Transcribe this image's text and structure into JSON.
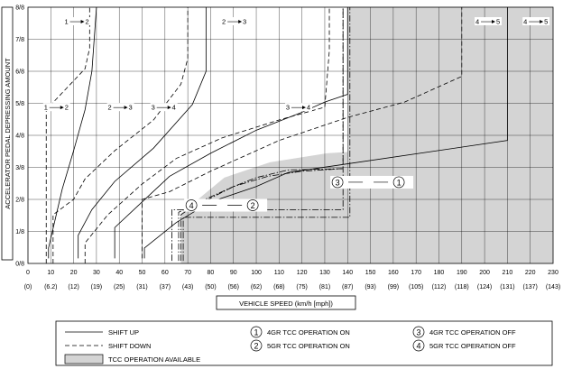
{
  "chart_data": {
    "type": "line",
    "title": "",
    "xlabel": "VEHICLE SPEED (km/h [mph])",
    "ylabel": "ACCELERATOR PEDAL DEPRESSING AMOUNT",
    "xlim": [
      0,
      230
    ],
    "ylim": [
      0,
      1
    ],
    "x_ticks": [
      {
        "v": 0,
        "kmh": "0",
        "mph": "(0)"
      },
      {
        "v": 10,
        "kmh": "10",
        "mph": "(6.2)"
      },
      {
        "v": 20,
        "kmh": "20",
        "mph": "(12)"
      },
      {
        "v": 30,
        "kmh": "30",
        "mph": "(19)"
      },
      {
        "v": 40,
        "kmh": "40",
        "mph": "(25)"
      },
      {
        "v": 50,
        "kmh": "50",
        "mph": "(31)"
      },
      {
        "v": 60,
        "kmh": "60",
        "mph": "(37)"
      },
      {
        "v": 70,
        "kmh": "70",
        "mph": "(43)"
      },
      {
        "v": 80,
        "kmh": "80",
        "mph": "(50)"
      },
      {
        "v": 90,
        "kmh": "90",
        "mph": "(56)"
      },
      {
        "v": 100,
        "kmh": "100",
        "mph": "(62)"
      },
      {
        "v": 110,
        "kmh": "110",
        "mph": "(68)"
      },
      {
        "v": 120,
        "kmh": "120",
        "mph": "(75)"
      },
      {
        "v": 130,
        "kmh": "130",
        "mph": "(81)"
      },
      {
        "v": 140,
        "kmh": "140",
        "mph": "(87)"
      },
      {
        "v": 150,
        "kmh": "150",
        "mph": "(93)"
      },
      {
        "v": 160,
        "kmh": "160",
        "mph": "(99)"
      },
      {
        "v": 170,
        "kmh": "170",
        "mph": "(105)"
      },
      {
        "v": 180,
        "kmh": "180",
        "mph": "(112)"
      },
      {
        "v": 190,
        "kmh": "190",
        "mph": "(118)"
      },
      {
        "v": 200,
        "kmh": "200",
        "mph": "(124)"
      },
      {
        "v": 210,
        "kmh": "210",
        "mph": "(131)"
      },
      {
        "v": 220,
        "kmh": "220",
        "mph": "(137)"
      },
      {
        "v": 230,
        "kmh": "230",
        "mph": "(143)"
      }
    ],
    "y_ticks": [
      {
        "v": 0,
        "label": "0/8"
      },
      {
        "v": 0.125,
        "label": "1/8"
      },
      {
        "v": 0.25,
        "label": "2/8"
      },
      {
        "v": 0.375,
        "label": "3/8"
      },
      {
        "v": 0.5,
        "label": "4/8"
      },
      {
        "v": 0.625,
        "label": "5/8"
      },
      {
        "v": 0.75,
        "label": "6/8"
      },
      {
        "v": 0.875,
        "label": "7/8"
      },
      {
        "v": 1.0,
        "label": "8/8"
      }
    ],
    "grid": true,
    "shaded_region": {
      "name": "TCC OPERATION AVAILABLE",
      "color": "#d4d4d4",
      "points": [
        [
          67,
          0
        ],
        [
          67,
          0.195
        ],
        [
          86,
          0.335
        ],
        [
          106,
          0.395
        ],
        [
          131,
          0.43
        ],
        [
          140,
          0.435
        ],
        [
          140,
          1.0
        ],
        [
          230,
          1.0
        ],
        [
          230,
          0
        ]
      ]
    },
    "series": [
      {
        "name": "1→2 up",
        "style": "solid",
        "points": [
          [
            9,
            0.02
          ],
          [
            9,
            0.06
          ],
          [
            15,
            0.29
          ],
          [
            20,
            0.44
          ],
          [
            25,
            0.6
          ],
          [
            28,
            0.75
          ],
          [
            30,
            1.0
          ]
        ]
      },
      {
        "name": "2→3 up",
        "style": "solid",
        "points": [
          [
            22,
            0.02
          ],
          [
            22,
            0.11
          ],
          [
            28,
            0.21
          ],
          [
            38,
            0.32
          ],
          [
            55,
            0.45
          ],
          [
            72,
            0.62
          ],
          [
            78,
            0.75
          ],
          [
            78,
            1.0
          ]
        ]
      },
      {
        "name": "3→4 up",
        "style": "solid",
        "points": [
          [
            38,
            0.02
          ],
          [
            38,
            0.14
          ],
          [
            50,
            0.24
          ],
          [
            62,
            0.34
          ],
          [
            80,
            0.43
          ],
          [
            100,
            0.52
          ],
          [
            120,
            0.59
          ],
          [
            130,
            0.63
          ],
          [
            140,
            0.66
          ],
          [
            140,
            1.0
          ]
        ]
      },
      {
        "name": "4→5 up",
        "style": "solid",
        "points": [
          [
            51,
            0.02
          ],
          [
            51,
            0.06
          ],
          [
            65,
            0.16
          ],
          [
            80,
            0.24
          ],
          [
            100,
            0.3
          ],
          [
            114,
            0.355
          ],
          [
            210,
            0.48
          ],
          [
            210,
            1.0
          ]
        ]
      },
      {
        "name": "1→2 down",
        "style": "dashed",
        "points": [
          [
            8,
            0
          ],
          [
            8,
            0.6
          ],
          [
            25,
            0.76
          ],
          [
            27,
            0.84
          ],
          [
            27,
            1.0
          ]
        ]
      },
      {
        "name": "2→3 down",
        "style": "dashed",
        "points": [
          [
            11,
            0
          ],
          [
            11,
            0.19
          ],
          [
            20,
            0.25
          ],
          [
            25,
            0.33
          ],
          [
            38,
            0.44
          ],
          [
            55,
            0.56
          ],
          [
            67,
            0.7
          ],
          [
            70,
            0.8
          ],
          [
            70,
            1.0
          ]
        ]
      },
      {
        "name": "3→4 down",
        "style": "dashed",
        "points": [
          [
            25,
            0
          ],
          [
            25,
            0.08
          ],
          [
            35,
            0.19
          ],
          [
            50,
            0.31
          ],
          [
            65,
            0.41
          ],
          [
            85,
            0.49
          ],
          [
            110,
            0.56
          ],
          [
            130,
            0.61
          ],
          [
            132,
            0.83
          ],
          [
            132,
            1.0
          ]
        ]
      },
      {
        "name": "4→5 down",
        "style": "dashed",
        "points": [
          [
            50,
            0.02
          ],
          [
            50,
            0.25
          ],
          [
            62,
            0.28
          ],
          [
            80,
            0.36
          ],
          [
            110,
            0.48
          ],
          [
            140,
            0.57
          ],
          [
            165,
            0.63
          ],
          [
            190,
            0.73
          ],
          [
            190,
            1.0
          ]
        ]
      },
      {
        "name": "4GR TCC OPERATION ON",
        "style": "dashdot",
        "points": [
          [
            66,
            0.01
          ],
          [
            66,
            0.2
          ],
          [
            80,
            0.255
          ],
          [
            90,
            0.3
          ],
          [
            100,
            0.335
          ],
          [
            114,
            0.365
          ],
          [
            138,
            0.37
          ],
          [
            138,
            1.0
          ]
        ]
      },
      {
        "name": "4GR TCC OPERATION OFF",
        "style": "dashdot",
        "points": [
          [
            63,
            0.01
          ],
          [
            63,
            0.21
          ],
          [
            138,
            0.21
          ],
          [
            138,
            1.0
          ]
        ]
      },
      {
        "name": "5GR TCC OPERATION ON",
        "style": "dashdot",
        "points": [
          [
            67,
            0.01
          ],
          [
            67,
            0.19
          ],
          [
            75,
            0.24
          ],
          [
            90,
            0.3
          ],
          [
            105,
            0.34
          ],
          [
            120,
            0.36
          ],
          [
            138,
            0.37
          ]
        ]
      },
      {
        "name": "5GR TCC OPERATION OFF",
        "style": "dashdot",
        "points": [
          [
            68,
            0.01
          ],
          [
            68,
            0.18
          ],
          [
            141,
            0.18
          ],
          [
            141,
            1.0
          ]
        ]
      }
    ],
    "annotations": [
      {
        "text": "1",
        "to": "2",
        "x": 18,
        "y": 0.94
      },
      {
        "text": "2",
        "to": "3",
        "x": 87,
        "y": 0.94
      },
      {
        "text": "4",
        "to": "5",
        "x": 198,
        "y": 0.94
      },
      {
        "text": "4",
        "to": "5",
        "x": 219,
        "y": 0.94
      },
      {
        "text": "1",
        "to": "2",
        "x": 9,
        "y": 0.605
      },
      {
        "text": "2",
        "to": "3",
        "x": 37,
        "y": 0.605
      },
      {
        "text": "3",
        "to": "4",
        "x": 56,
        "y": 0.605
      },
      {
        "text": "3",
        "to": "4",
        "x": 115,
        "y": 0.605
      },
      {
        "text": "4",
        "to": "2",
        "x": 70,
        "y": 0.22,
        "circled": true
      },
      {
        "text": "3",
        "to": "1",
        "x": 134,
        "y": 0.31,
        "circled": true
      }
    ],
    "legend": {
      "position": "bottom",
      "items": [
        {
          "sym": "solid",
          "label": "SHIFT UP"
        },
        {
          "sym": "dashed",
          "label": "SHIFT DOWN"
        },
        {
          "sym": "box",
          "label": "TCC OPERATION AVAILABLE"
        },
        {
          "sym": "1",
          "label": "4GR TCC OPERATION ON"
        },
        {
          "sym": "2",
          "label": "5GR TCC OPERATION ON"
        },
        {
          "sym": "3",
          "label": "4GR TCC OPERATION OFF"
        },
        {
          "sym": "4",
          "label": "5GR TCC OPERATION OFF"
        }
      ]
    }
  }
}
